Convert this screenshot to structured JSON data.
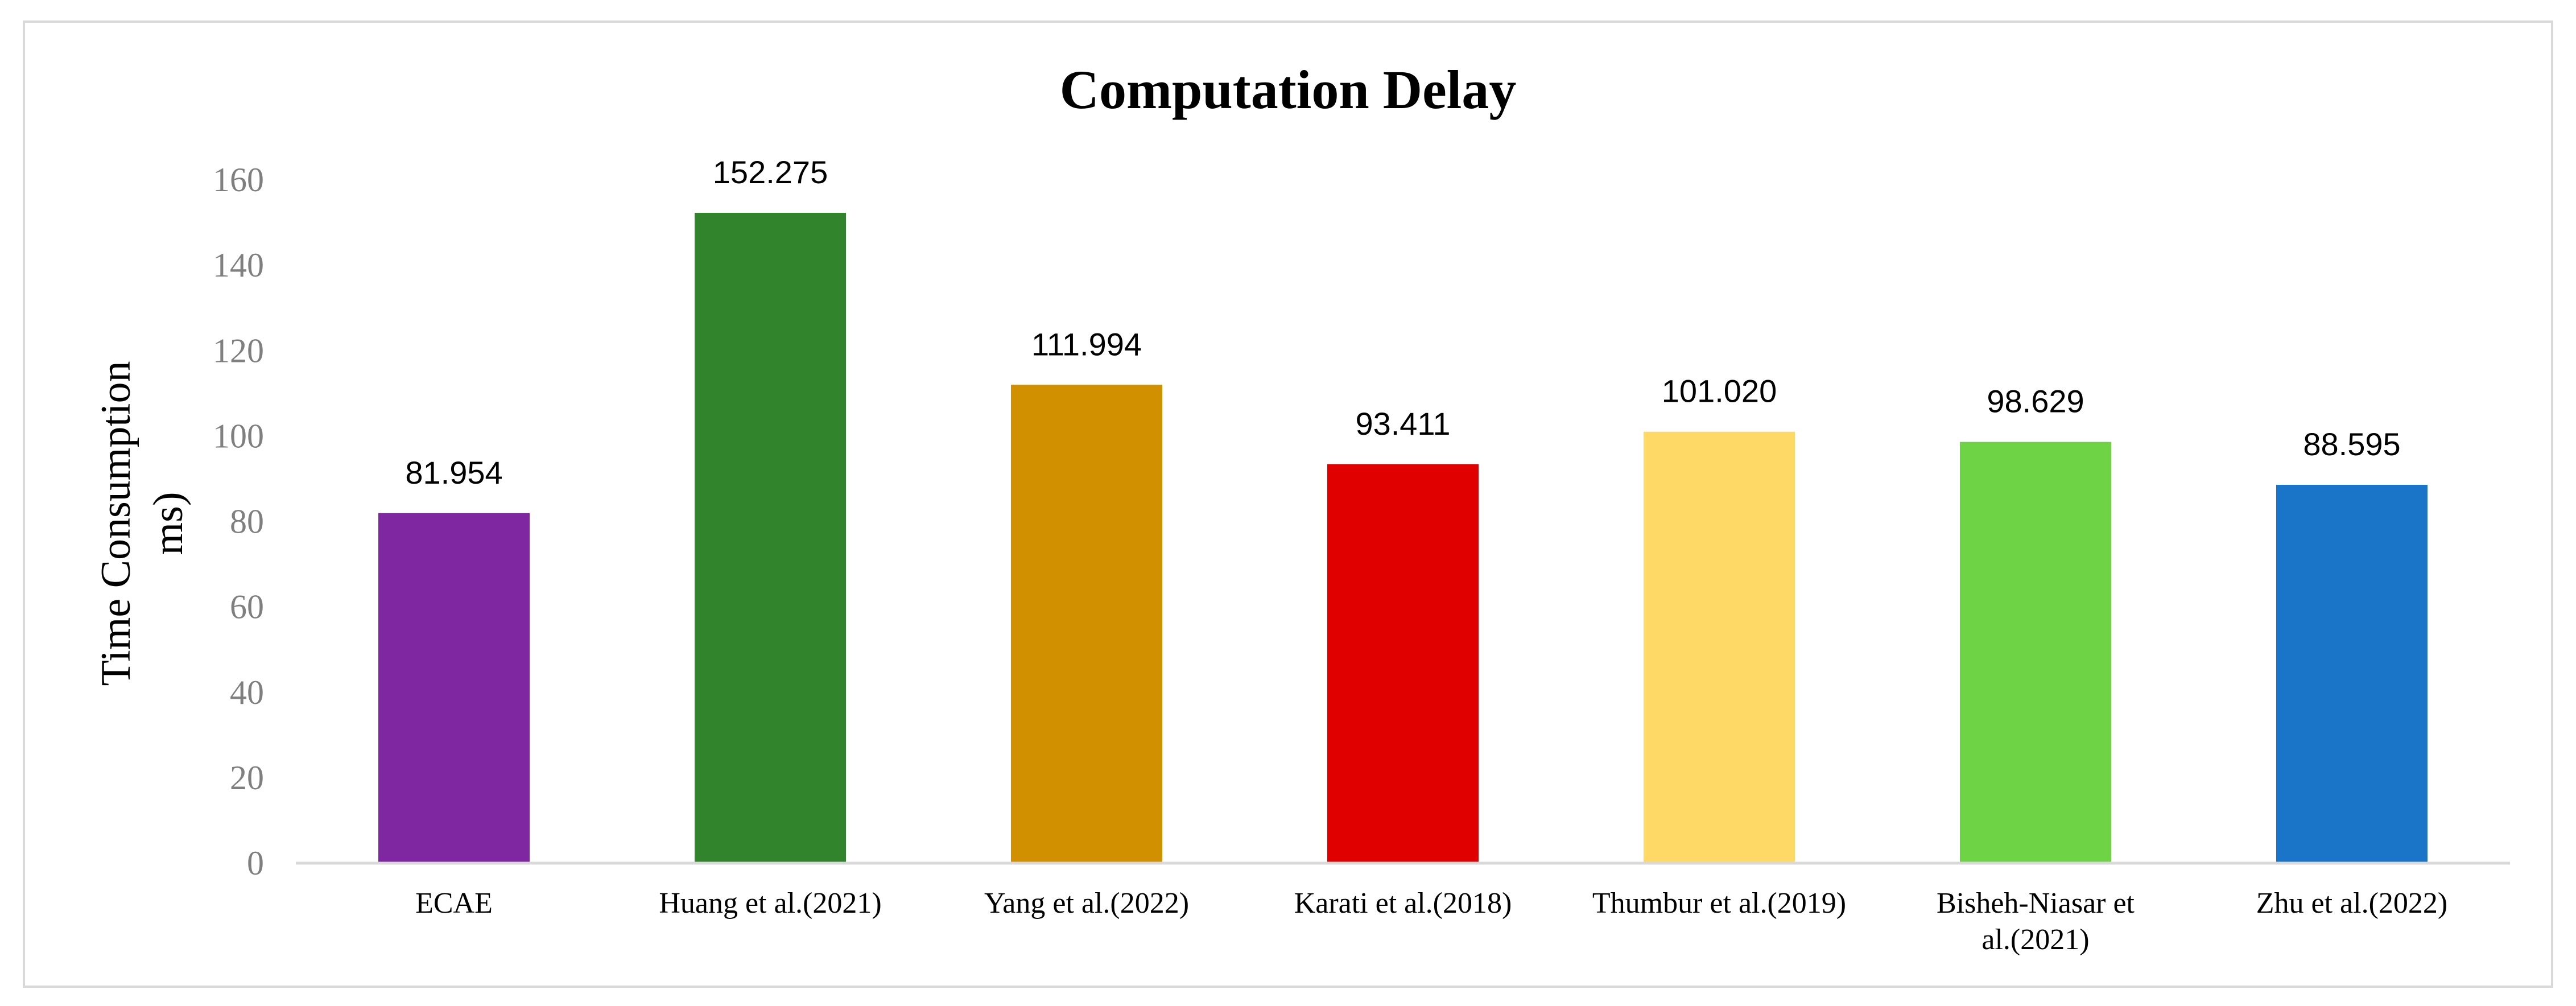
{
  "chart_data": {
    "type": "bar",
    "title": "Computation Delay",
    "ylabel_lines": [
      "Time Consumption",
      "ms)"
    ],
    "xlabel": "",
    "ylim": [
      0,
      160
    ],
    "yticks": [
      "0",
      "20",
      "40",
      "60",
      "80",
      "100",
      "120",
      "140",
      "160"
    ],
    "grid": false,
    "legend": "none",
    "categories": [
      [
        "ECAE"
      ],
      [
        "Huang et al.(2021)"
      ],
      [
        "Yang et al.(2022)"
      ],
      [
        "Karati et al.(2018)"
      ],
      [
        "Thumbur et al.(2019)"
      ],
      [
        "Bisheh-Niasar et",
        "al.(2021)"
      ],
      [
        "Zhu et al.(2022)"
      ]
    ],
    "values": [
      81.954,
      152.275,
      111.994,
      93.411,
      101.02,
      98.629,
      88.595
    ],
    "value_labels": [
      "81.954",
      "152.275",
      "111.994",
      "93.411",
      "101.020",
      "98.629",
      "88.595"
    ],
    "colors": [
      "#7f27a1",
      "#31842c",
      "#d09000",
      "#e00000",
      "#ffd966",
      "#6ed345",
      "#1a74c8"
    ]
  }
}
